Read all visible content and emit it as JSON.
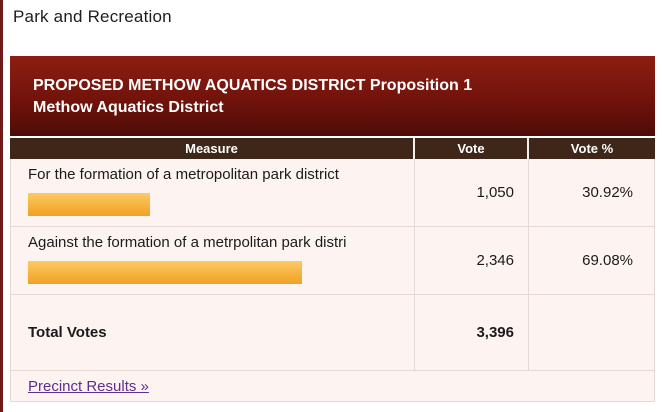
{
  "page": {
    "heading": "Park and Recreation"
  },
  "contest": {
    "title_line1": "PROPOSED METHOW AQUATICS DISTRICT Proposition 1",
    "title_line2": "Methow Aquatics District"
  },
  "table": {
    "headers": {
      "measure": "Measure",
      "vote": "Vote",
      "vote_pct": "Vote %"
    },
    "rows": [
      {
        "measure": "For the formation of a metropolitan park district",
        "vote": "1,050",
        "vote_pct": "30.92%",
        "pct": 30.92
      },
      {
        "measure": "Against the formation of a metrpolitan park distri",
        "vote": "2,346",
        "vote_pct": "69.08%",
        "pct": 69.08
      }
    ],
    "total": {
      "label": "Total Votes",
      "vote": "3,396"
    }
  },
  "links": {
    "precinct_results": "Precinct Results »"
  },
  "colors": {
    "page_border": "#6e1a1b",
    "contest_header_gradient_top": "#8c1e12",
    "contest_header_gradient_bottom": "#4e0c07",
    "table_header_bg": "#3e2718",
    "table_body_bg": "#fdf4f1",
    "table_border": "#e7d8d3",
    "bar_gradient_top": "#fccb66",
    "bar_gradient_bottom": "#f0a126",
    "link": "#5e2d8d"
  }
}
